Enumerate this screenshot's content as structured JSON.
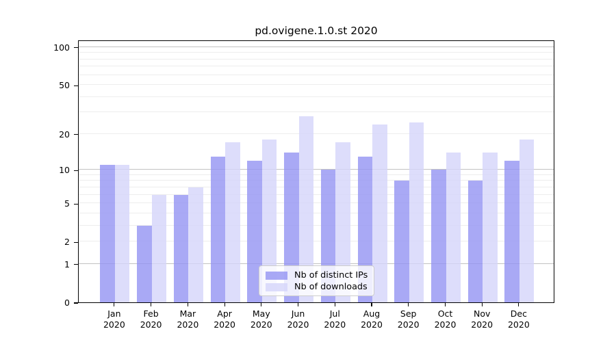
{
  "chart_data": {
    "type": "bar",
    "title": "pd.ovigene.1.0.st 2020",
    "categories": [
      "Jan",
      "Feb",
      "Mar",
      "Apr",
      "May",
      "Jun",
      "Jul",
      "Aug",
      "Sep",
      "Oct",
      "Nov",
      "Dec"
    ],
    "x_year_label": "2020",
    "series": [
      {
        "name": "Nb of distinct IPs",
        "color": "rgba(148,148,243,0.8)",
        "values": [
          11,
          3,
          6,
          13,
          12,
          14,
          10,
          13,
          8,
          10,
          8,
          12
        ]
      },
      {
        "name": "Nb of downloads",
        "color": "rgba(213,213,250,0.8)",
        "values": [
          11,
          6,
          7,
          17,
          18,
          28,
          17,
          24,
          25,
          14,
          14,
          18
        ]
      }
    ],
    "xlabel": "",
    "ylabel": "",
    "y_scale": "log10(value+1), 0 at baseline",
    "ylim": [
      0,
      115
    ],
    "y_ticks_labeled": [
      100,
      50,
      20,
      10,
      5,
      2,
      1,
      0
    ],
    "y_major_gridlines": [
      1,
      10,
      100
    ],
    "y_minor_gridlines": [
      2,
      3,
      4,
      5,
      6,
      7,
      8,
      9,
      20,
      30,
      40,
      50,
      60,
      70,
      80,
      90
    ],
    "grid": "on",
    "legend_position": "lower center",
    "colors": {
      "major_grid": "#c2c2c2",
      "minor_grid": "#ededed",
      "axis": "#000000",
      "legend_border": "#cccccc"
    }
  }
}
